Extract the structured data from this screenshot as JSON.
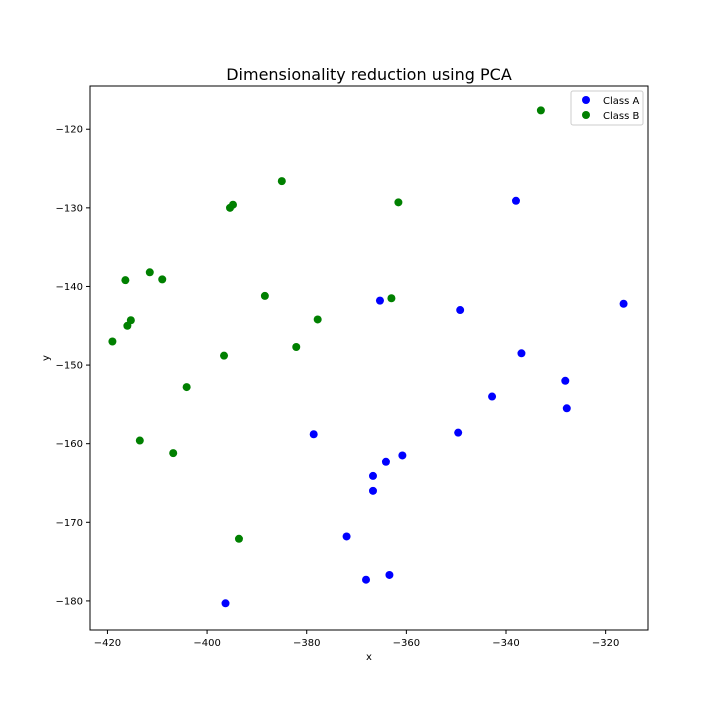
{
  "chart_data": {
    "type": "scatter",
    "title": "Dimensionality reduction using PCA",
    "xlabel": "x",
    "ylabel": "y",
    "xlim": [
      -423.5,
      -311.5
    ],
    "ylim": [
      -183.7,
      -114.5
    ],
    "xticks": [
      -420,
      -400,
      -380,
      -360,
      -340,
      -320
    ],
    "yticks": [
      -120,
      -130,
      -140,
      -150,
      -160,
      -170,
      -180
    ],
    "xtick_labels": [
      "−420",
      "−400",
      "−380",
      "−360",
      "−340",
      "−320"
    ],
    "ytick_labels": [
      "−120",
      "−130",
      "−140",
      "−150",
      "−160",
      "−170",
      "−180"
    ],
    "grid": false,
    "legend_position": "top-right",
    "series": [
      {
        "name": "Class A",
        "color": "#0000ff",
        "points": [
          [
            -338.0,
            -129.1
          ],
          [
            -316.4,
            -142.2
          ],
          [
            -349.2,
            -143.0
          ],
          [
            -365.3,
            -141.8
          ],
          [
            -336.9,
            -148.5
          ],
          [
            -328.1,
            -152.0
          ],
          [
            -327.8,
            -155.5
          ],
          [
            -342.8,
            -154.0
          ],
          [
            -349.6,
            -158.6
          ],
          [
            -378.6,
            -158.8
          ],
          [
            -360.8,
            -161.5
          ],
          [
            -364.1,
            -162.3
          ],
          [
            -366.7,
            -164.1
          ],
          [
            -366.7,
            -166.0
          ],
          [
            -372.0,
            -171.8
          ],
          [
            -368.1,
            -177.3
          ],
          [
            -363.4,
            -176.7
          ],
          [
            -396.3,
            -180.3
          ]
        ]
      },
      {
        "name": "Class B",
        "color": "#008000",
        "points": [
          [
            -333.0,
            -117.6
          ],
          [
            -385.0,
            -126.6
          ],
          [
            -361.6,
            -129.3
          ],
          [
            -394.8,
            -129.6
          ],
          [
            -395.4,
            -130.0
          ],
          [
            -411.5,
            -138.2
          ],
          [
            -416.4,
            -139.2
          ],
          [
            -409.0,
            -139.1
          ],
          [
            -388.4,
            -141.2
          ],
          [
            -363.0,
            -141.5
          ],
          [
            -415.3,
            -144.3
          ],
          [
            -416.0,
            -145.0
          ],
          [
            -377.8,
            -144.2
          ],
          [
            -419.0,
            -147.0
          ],
          [
            -382.1,
            -147.7
          ],
          [
            -396.6,
            -148.8
          ],
          [
            -404.1,
            -152.8
          ],
          [
            -413.5,
            -159.6
          ],
          [
            -406.8,
            -161.2
          ],
          [
            -393.6,
            -172.1
          ]
        ]
      }
    ]
  }
}
